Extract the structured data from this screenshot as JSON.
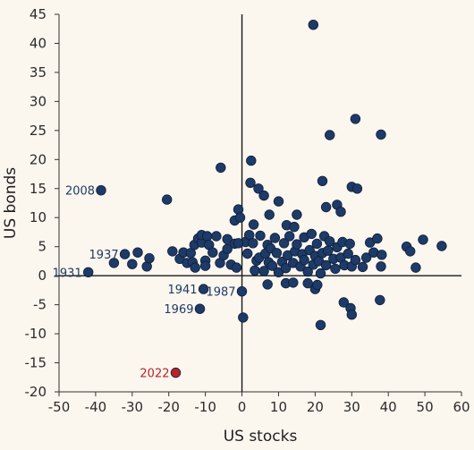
{
  "chart_data": {
    "type": "scatter",
    "xlabel": "US stocks",
    "ylabel": "US bonds",
    "xlim": [
      -50,
      60
    ],
    "ylim": [
      -20,
      45
    ],
    "xticks": [
      -50,
      -40,
      -30,
      -20,
      -10,
      0,
      10,
      20,
      30,
      40,
      50,
      60
    ],
    "yticks": [
      -20,
      -15,
      -10,
      -5,
      0,
      5,
      10,
      15,
      20,
      25,
      30,
      35,
      40,
      45
    ],
    "grid": false,
    "colors": {
      "point": "#1e3a66",
      "highlight": "#b7232a",
      "axis": "#1a1a1a",
      "label": "#1e3a66"
    },
    "annotations": [
      {
        "text": "2008",
        "x": -38.5,
        "y": 14.7,
        "side": "left",
        "color": "#1e3a66"
      },
      {
        "text": "1937",
        "x": -32,
        "y": 3.7,
        "side": "left",
        "color": "#1e3a66"
      },
      {
        "text": "1931",
        "x": -42,
        "y": 0.6,
        "side": "left",
        "color": "#1e3a66"
      },
      {
        "text": "1941",
        "x": -10.5,
        "y": -2.3,
        "side": "left",
        "color": "#1e3a66"
      },
      {
        "text": "1987",
        "x": 0,
        "y": -2.7,
        "side": "left",
        "color": "#1e3a66"
      },
      {
        "text": "1969",
        "x": -11.5,
        "y": -5.7,
        "side": "left",
        "color": "#1e3a66"
      },
      {
        "text": "2022",
        "x": -18.1,
        "y": -16.7,
        "side": "left",
        "color": "#b7232a"
      }
    ],
    "series": [
      {
        "points": [
          [
            -38.5,
            14.7
          ],
          [
            -42,
            0.6
          ],
          [
            -32,
            3.7
          ],
          [
            -10.5,
            -2.3
          ],
          [
            0,
            -2.7
          ],
          [
            -11.5,
            -5.7
          ],
          [
            19.5,
            43.2
          ],
          [
            31,
            27
          ],
          [
            38,
            24.3
          ],
          [
            24,
            24.2
          ],
          [
            -5.8,
            18.6
          ],
          [
            2.5,
            19.8
          ],
          [
            2.3,
            16
          ],
          [
            4.5,
            15
          ],
          [
            30,
            15.3
          ],
          [
            31.5,
            15
          ],
          [
            -20.5,
            13.1
          ],
          [
            6,
            13.8
          ],
          [
            22,
            16.3
          ],
          [
            10,
            12.8
          ],
          [
            26,
            12.2
          ],
          [
            -1,
            11.4
          ],
          [
            15,
            10.5
          ],
          [
            23,
            11.8
          ],
          [
            27,
            11
          ],
          [
            -2,
            9.5
          ],
          [
            3.2,
            8.8
          ],
          [
            12.2,
            8.7
          ],
          [
            14.3,
            8.4
          ],
          [
            17,
            6.6
          ],
          [
            -35,
            2.2
          ],
          [
            -30,
            2
          ],
          [
            -28.5,
            4
          ],
          [
            -26,
            1.6
          ],
          [
            -25.3,
            3
          ],
          [
            -19,
            4.2
          ],
          [
            -17,
            2.9
          ],
          [
            -16,
            4
          ],
          [
            -15,
            2.2
          ],
          [
            -14,
            3.9
          ],
          [
            -13,
            5.3
          ],
          [
            -12,
            6.4
          ],
          [
            -11,
            5.7
          ],
          [
            -11,
            7
          ],
          [
            -10,
            2.6
          ],
          [
            -10,
            1.7
          ],
          [
            -9.5,
            6.8
          ],
          [
            -9,
            5.3
          ],
          [
            -8,
            4
          ],
          [
            -7,
            6.8
          ],
          [
            -6,
            2.2
          ],
          [
            -5,
            3.5
          ],
          [
            -4,
            4.6
          ],
          [
            -4,
            6.3
          ],
          [
            -3,
            1.9
          ],
          [
            -2,
            5.5
          ],
          [
            -1.5,
            1.4
          ],
          [
            -0.5,
            10
          ],
          [
            1,
            5.8
          ],
          [
            1.5,
            3.8
          ],
          [
            2,
            7
          ],
          [
            3,
            5.6
          ],
          [
            3.5,
            0.9
          ],
          [
            4,
            2.6
          ],
          [
            4.7,
            3.1
          ],
          [
            5,
            6.9
          ],
          [
            6,
            0.8
          ],
          [
            6.4,
            3.8
          ],
          [
            7,
            5.3
          ],
          [
            7.3,
            2.3
          ],
          [
            7.8,
            4.7
          ],
          [
            8.3,
            1.7
          ],
          [
            9,
            6.5
          ],
          [
            9.5,
            3.9
          ],
          [
            10,
            0.6
          ],
          [
            11,
            2.4
          ],
          [
            11.5,
            5.6
          ],
          [
            12,
            1.3
          ],
          [
            12.5,
            3.5
          ],
          [
            13,
            6.8
          ],
          [
            14,
            2.2
          ],
          [
            14.5,
            4.2
          ],
          [
            15,
            5.4
          ],
          [
            16,
            1.6
          ],
          [
            16.5,
            3.7
          ],
          [
            17,
            2.7
          ],
          [
            18,
            0.7
          ],
          [
            18.5,
            4.4
          ],
          [
            19,
            7.2
          ],
          [
            19.5,
            1.9
          ],
          [
            20,
            3.4
          ],
          [
            20.5,
            5.5
          ],
          [
            21,
            2.5
          ],
          [
            21.5,
            0.4
          ],
          [
            22,
            3.9
          ],
          [
            22.5,
            6.8
          ],
          [
            23,
            1.8
          ],
          [
            23.5,
            4.3
          ],
          [
            24,
            5.9
          ],
          [
            25,
            2.9
          ],
          [
            25.5,
            1.2
          ],
          [
            26,
            4.9
          ],
          [
            27,
            3.1
          ],
          [
            27.5,
            5.8
          ],
          [
            28,
            1.8
          ],
          [
            29,
            3.8
          ],
          [
            29.5,
            5.5
          ],
          [
            30,
            1.6
          ],
          [
            31,
            2.7
          ],
          [
            33,
            1.5
          ],
          [
            34,
            3.1
          ],
          [
            35,
            5.7
          ],
          [
            36,
            4
          ],
          [
            37,
            6.4
          ],
          [
            38,
            1.6
          ],
          [
            38.2,
            3.6
          ],
          [
            45,
            5
          ],
          [
            46,
            4.2
          ],
          [
            47.5,
            1.4
          ],
          [
            49.5,
            6.2
          ],
          [
            54.6,
            5.1
          ],
          [
            7,
            -1.5
          ],
          [
            -13.5,
            2.3
          ],
          [
            -12.8,
            1.4
          ],
          [
            12,
            -1.3
          ],
          [
            14,
            -1.2
          ],
          [
            18,
            -1.3
          ],
          [
            20,
            -2.3
          ],
          [
            21.5,
            -8.5
          ],
          [
            27.8,
            -4.6
          ],
          [
            29.7,
            -5.6
          ],
          [
            30,
            -6.7
          ],
          [
            37.7,
            -4.2
          ],
          [
            0.3,
            -7.2
          ],
          [
            20.6,
            -1.6
          ],
          [
            7.5,
            10.5
          ],
          [
            -1,
            5.6
          ]
        ]
      },
      {
        "points": [
          [
            -18.1,
            -16.7
          ]
        ],
        "highlight": true
      }
    ]
  }
}
